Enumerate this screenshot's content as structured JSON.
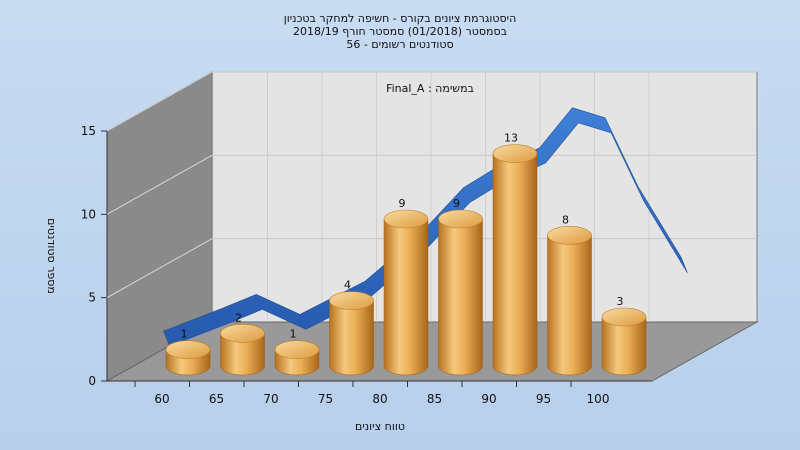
{
  "chart_data": {
    "type": "bar",
    "title_lines": [
      "היסטוגרמת ציונים בקורס - חשיפה למחקר בטכניון",
      "בסמסטר  (01/2018)  סמסטר חורף 2018/19",
      "סטודנטים רשומים - 56"
    ],
    "subtitle": "במשימה : Final_A",
    "xlabel": "טווח ציונים",
    "ylabel": "מספר סטודנטים",
    "x_ticks": [
      "60",
      "65",
      "70",
      "75",
      "80",
      "85",
      "90",
      "95",
      "100"
    ],
    "y_ticks": [
      "0",
      "5",
      "10",
      "15"
    ],
    "ylim": [
      0,
      15
    ],
    "values": [
      1,
      2,
      1,
      4,
      9,
      9,
      13,
      8,
      3
    ],
    "data_labels": [
      "1",
      "2",
      "1",
      "4",
      "9",
      "9",
      "13",
      "8",
      "3"
    ],
    "trend_curve": [
      [
        57.5,
        2.8
      ],
      [
        63,
        4.2
      ],
      [
        66,
        5.0
      ],
      [
        70,
        3.8
      ],
      [
        76,
        5.8
      ],
      [
        81,
        8.6
      ],
      [
        85,
        11.4
      ],
      [
        88,
        12.6
      ],
      [
        92,
        13.8
      ],
      [
        95,
        16.2
      ],
      [
        98,
        15.6
      ],
      [
        101,
        11.5
      ],
      [
        105,
        7.2
      ]
    ],
    "grid": true,
    "legend": "none",
    "colors": {
      "bar_light": "#f6cf86",
      "bar_mid": "#e3a246",
      "bar_dark": "#b26d1a",
      "curve": "#2f6bc2",
      "background": "#bcd3ee",
      "back_wall": "#e6e6e6",
      "side_wall": "#8a8a8a",
      "floor": "#9a9a9a"
    }
  }
}
